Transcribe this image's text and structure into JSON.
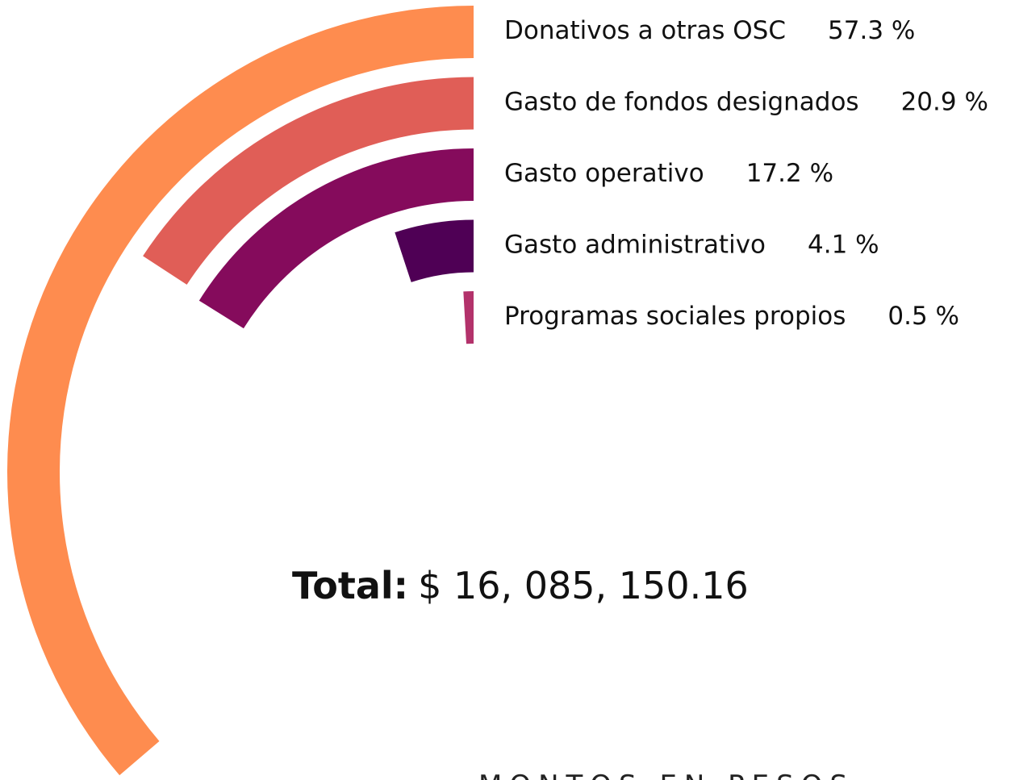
{
  "chart_data": {
    "type": "radial_bar",
    "categories": [
      "Donativos a otras OSC",
      "Gasto de fondos designados",
      "Gasto operativo",
      "Gasto administrativo",
      "Programas sociales propios"
    ],
    "values": [
      57.3,
      20.9,
      17.2,
      4.1,
      0.5
    ],
    "value_labels": [
      "57.3 %",
      "20.9 %",
      "17.2 %",
      "4.1 %",
      "0.5 %"
    ],
    "colors": [
      "#fe8c4f",
      "#e05e57",
      "#850b5c",
      "#4f0055",
      "#b3326b"
    ],
    "total_label": "Total:",
    "total_value": "$ 16, 085, 150.16",
    "subtitle": "MONTOS EN PESOS"
  }
}
